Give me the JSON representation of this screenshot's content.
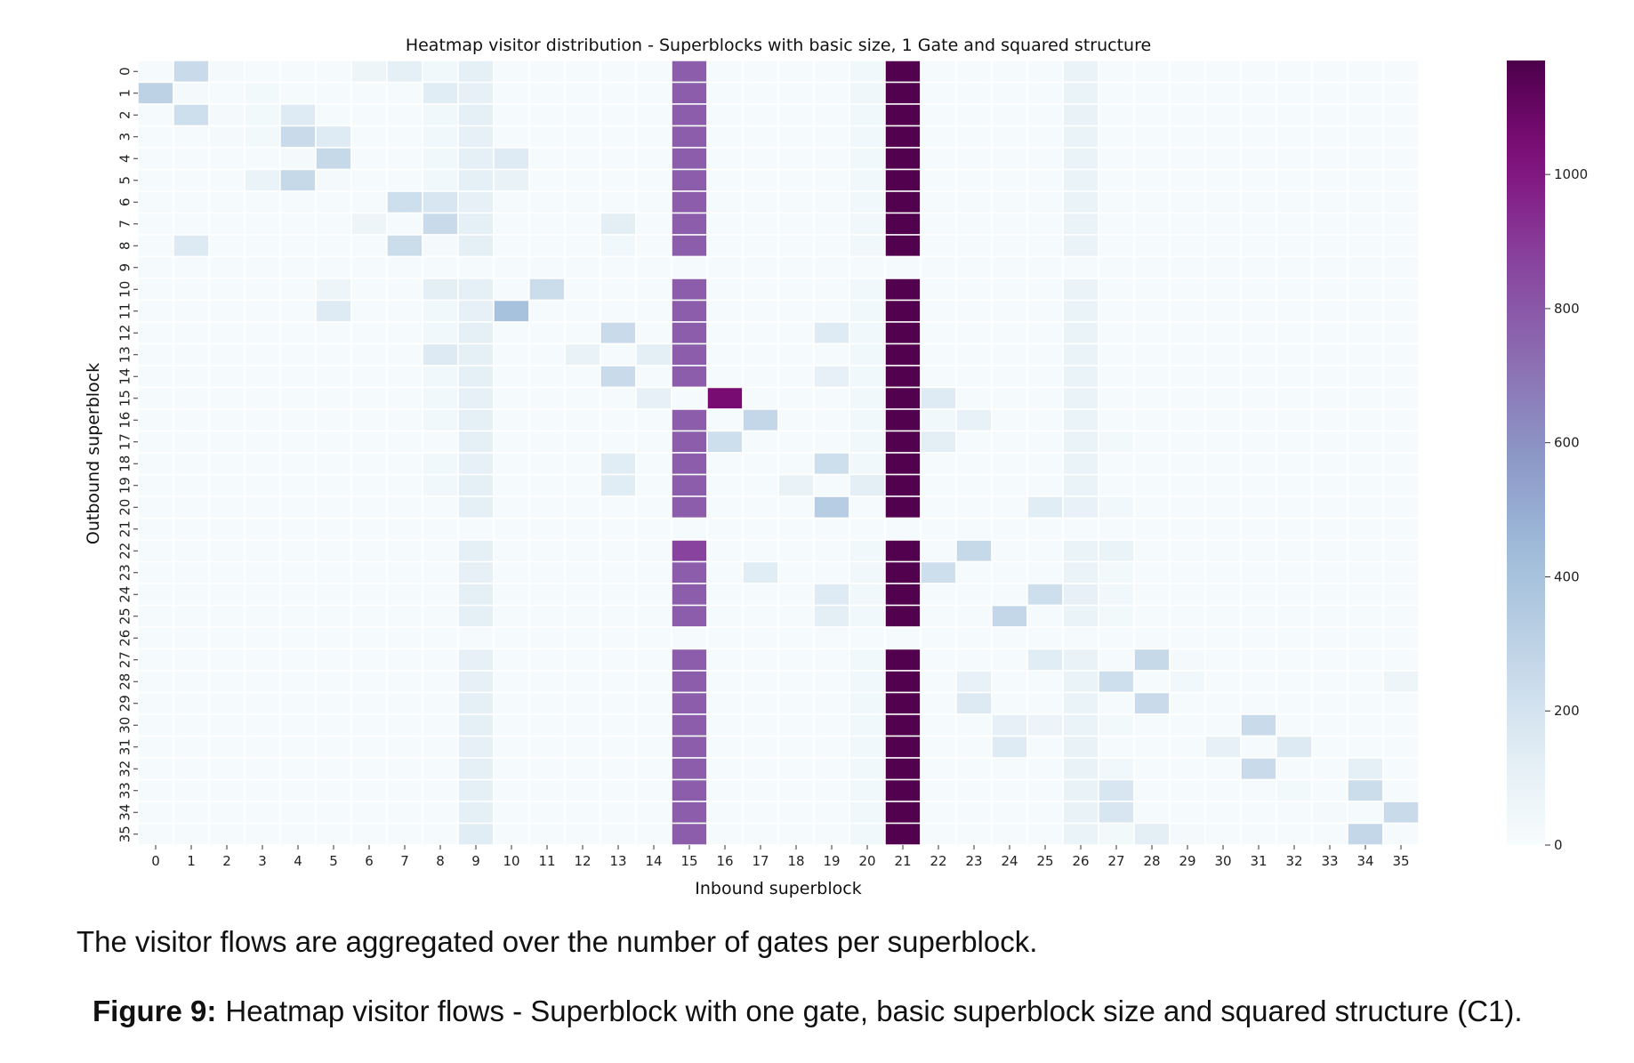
{
  "chart_data": {
    "type": "heatmap",
    "title": "Heatmap visitor distribution - Superblocks with basic size, 1 Gate and squared structure",
    "xlabel": "Inbound superblock",
    "ylabel": "Outbound superblock",
    "x_categories": [
      "0",
      "1",
      "2",
      "3",
      "4",
      "5",
      "6",
      "7",
      "8",
      "9",
      "10",
      "11",
      "12",
      "13",
      "14",
      "15",
      "16",
      "17",
      "18",
      "19",
      "20",
      "21",
      "22",
      "23",
      "24",
      "25",
      "26",
      "27",
      "28",
      "29",
      "30",
      "31",
      "32",
      "33",
      "34",
      "35"
    ],
    "y_categories": [
      "0",
      "1",
      "2",
      "3",
      "4",
      "5",
      "6",
      "7",
      "8",
      "9",
      "10",
      "11",
      "12",
      "13",
      "14",
      "15",
      "16",
      "17",
      "18",
      "19",
      "20",
      "21",
      "22",
      "23",
      "24",
      "25",
      "26",
      "27",
      "28",
      "29",
      "30",
      "31",
      "32",
      "33",
      "34",
      "35"
    ],
    "colormap": "BuPu",
    "colorbar": {
      "range": [
        0,
        1170
      ],
      "ticks": [
        0,
        200,
        400,
        600,
        800,
        1000
      ]
    },
    "linecolor": "#ffffff",
    "values": [
      [
        10,
        250,
        20,
        10,
        10,
        10,
        60,
        120,
        40,
        120,
        10,
        10,
        10,
        10,
        10,
        780,
        10,
        10,
        10,
        10,
        40,
        1160,
        10,
        10,
        10,
        10,
        80,
        10,
        10,
        10,
        10,
        10,
        10,
        10,
        10,
        10
      ],
      [
        300,
        20,
        10,
        30,
        10,
        10,
        10,
        10,
        140,
        110,
        10,
        10,
        10,
        10,
        10,
        780,
        10,
        10,
        10,
        10,
        50,
        1160,
        10,
        10,
        10,
        10,
        80,
        10,
        10,
        10,
        10,
        10,
        10,
        10,
        10,
        10
      ],
      [
        10,
        230,
        20,
        30,
        150,
        10,
        10,
        10,
        40,
        120,
        10,
        10,
        10,
        10,
        10,
        780,
        10,
        10,
        10,
        10,
        40,
        1160,
        10,
        10,
        10,
        10,
        90,
        10,
        10,
        10,
        10,
        10,
        10,
        10,
        10,
        10
      ],
      [
        10,
        10,
        20,
        30,
        250,
        150,
        10,
        10,
        40,
        110,
        10,
        10,
        10,
        10,
        10,
        780,
        10,
        10,
        10,
        10,
        40,
        1160,
        10,
        10,
        10,
        10,
        80,
        10,
        10,
        10,
        10,
        10,
        10,
        10,
        10,
        10
      ],
      [
        10,
        10,
        10,
        10,
        20,
        260,
        10,
        10,
        40,
        120,
        150,
        10,
        10,
        10,
        10,
        780,
        10,
        10,
        10,
        10,
        40,
        1160,
        10,
        10,
        10,
        10,
        80,
        10,
        10,
        10,
        10,
        10,
        10,
        10,
        10,
        10
      ],
      [
        10,
        10,
        10,
        80,
        260,
        20,
        10,
        10,
        40,
        120,
        90,
        10,
        10,
        10,
        10,
        780,
        10,
        10,
        10,
        10,
        40,
        1160,
        10,
        10,
        10,
        10,
        80,
        10,
        10,
        10,
        10,
        10,
        10,
        10,
        10,
        10
      ],
      [
        10,
        10,
        10,
        10,
        10,
        10,
        10,
        230,
        180,
        110,
        10,
        10,
        10,
        10,
        10,
        780,
        10,
        10,
        10,
        10,
        40,
        1160,
        10,
        10,
        10,
        10,
        80,
        10,
        10,
        10,
        10,
        10,
        10,
        10,
        10,
        10
      ],
      [
        10,
        10,
        10,
        10,
        10,
        10,
        60,
        10,
        250,
        120,
        10,
        10,
        10,
        130,
        10,
        780,
        10,
        10,
        10,
        10,
        40,
        1160,
        10,
        10,
        10,
        10,
        80,
        10,
        10,
        10,
        10,
        10,
        10,
        10,
        10,
        10
      ],
      [
        10,
        160,
        10,
        10,
        10,
        10,
        10,
        240,
        20,
        120,
        10,
        10,
        10,
        40,
        10,
        780,
        10,
        10,
        10,
        10,
        40,
        1160,
        10,
        10,
        10,
        10,
        80,
        10,
        10,
        10,
        10,
        10,
        10,
        10,
        10,
        10
      ],
      [
        10,
        10,
        10,
        10,
        10,
        10,
        10,
        10,
        10,
        10,
        10,
        10,
        10,
        10,
        10,
        10,
        10,
        10,
        10,
        10,
        10,
        10,
        10,
        10,
        10,
        10,
        10,
        10,
        10,
        10,
        10,
        10,
        10,
        10,
        10,
        10
      ],
      [
        10,
        10,
        10,
        10,
        10,
        60,
        10,
        10,
        130,
        120,
        10,
        240,
        10,
        10,
        10,
        780,
        10,
        10,
        10,
        10,
        40,
        1160,
        10,
        10,
        10,
        10,
        80,
        10,
        10,
        10,
        10,
        10,
        10,
        10,
        10,
        10
      ],
      [
        10,
        10,
        10,
        10,
        10,
        150,
        10,
        10,
        40,
        110,
        400,
        10,
        10,
        10,
        10,
        780,
        10,
        10,
        10,
        10,
        40,
        1160,
        10,
        10,
        10,
        10,
        80,
        10,
        10,
        10,
        10,
        10,
        10,
        10,
        10,
        10
      ],
      [
        10,
        10,
        10,
        10,
        10,
        10,
        10,
        10,
        40,
        120,
        10,
        10,
        10,
        250,
        10,
        780,
        10,
        10,
        10,
        150,
        40,
        1160,
        10,
        10,
        10,
        10,
        80,
        10,
        10,
        10,
        10,
        10,
        10,
        10,
        10,
        10
      ],
      [
        10,
        10,
        10,
        10,
        10,
        10,
        10,
        10,
        160,
        120,
        10,
        10,
        90,
        10,
        130,
        780,
        10,
        10,
        10,
        10,
        40,
        1160,
        10,
        10,
        10,
        10,
        80,
        10,
        10,
        10,
        10,
        10,
        10,
        10,
        10,
        10
      ],
      [
        10,
        10,
        10,
        10,
        10,
        10,
        10,
        10,
        40,
        120,
        10,
        10,
        10,
        250,
        10,
        780,
        10,
        10,
        10,
        110,
        40,
        1160,
        10,
        10,
        10,
        10,
        80,
        10,
        10,
        10,
        10,
        10,
        10,
        10,
        10,
        10
      ],
      [
        10,
        10,
        10,
        10,
        10,
        10,
        10,
        10,
        40,
        110,
        10,
        10,
        10,
        10,
        110,
        10,
        1050,
        10,
        10,
        10,
        40,
        1160,
        150,
        10,
        10,
        10,
        80,
        10,
        10,
        10,
        10,
        10,
        10,
        10,
        10,
        10
      ],
      [
        10,
        10,
        10,
        10,
        10,
        10,
        10,
        10,
        40,
        120,
        10,
        10,
        10,
        10,
        10,
        780,
        10,
        270,
        10,
        10,
        40,
        1160,
        40,
        100,
        10,
        10,
        80,
        10,
        10,
        10,
        10,
        10,
        10,
        10,
        10,
        10
      ],
      [
        10,
        10,
        10,
        10,
        10,
        10,
        10,
        10,
        10,
        120,
        10,
        10,
        10,
        10,
        10,
        780,
        230,
        10,
        10,
        10,
        40,
        1160,
        130,
        10,
        10,
        10,
        80,
        30,
        10,
        10,
        10,
        10,
        10,
        10,
        10,
        10
      ],
      [
        10,
        10,
        10,
        10,
        10,
        10,
        10,
        10,
        40,
        110,
        10,
        10,
        10,
        140,
        10,
        780,
        10,
        10,
        10,
        230,
        40,
        1160,
        10,
        10,
        10,
        10,
        80,
        10,
        10,
        10,
        10,
        10,
        10,
        10,
        10,
        10
      ],
      [
        10,
        10,
        10,
        10,
        10,
        10,
        10,
        10,
        40,
        120,
        10,
        10,
        10,
        140,
        10,
        780,
        10,
        10,
        90,
        10,
        130,
        1160,
        10,
        10,
        10,
        10,
        80,
        10,
        10,
        10,
        10,
        10,
        10,
        10,
        10,
        10
      ],
      [
        10,
        10,
        10,
        10,
        10,
        10,
        10,
        10,
        10,
        120,
        10,
        10,
        10,
        10,
        10,
        780,
        10,
        10,
        10,
        330,
        10,
        1160,
        10,
        10,
        10,
        140,
        100,
        40,
        10,
        10,
        10,
        10,
        10,
        10,
        10,
        10
      ],
      [
        10,
        10,
        10,
        10,
        10,
        10,
        10,
        10,
        10,
        10,
        10,
        10,
        10,
        10,
        10,
        10,
        10,
        10,
        10,
        10,
        10,
        10,
        10,
        10,
        10,
        10,
        10,
        10,
        10,
        10,
        10,
        10,
        10,
        10,
        10,
        10
      ],
      [
        10,
        10,
        10,
        10,
        10,
        10,
        10,
        10,
        10,
        120,
        10,
        10,
        10,
        10,
        10,
        870,
        10,
        10,
        10,
        10,
        40,
        1160,
        10,
        260,
        10,
        10,
        80,
        80,
        10,
        10,
        10,
        10,
        10,
        10,
        10,
        10
      ],
      [
        10,
        10,
        10,
        10,
        10,
        10,
        10,
        10,
        10,
        110,
        10,
        10,
        10,
        10,
        10,
        780,
        10,
        140,
        10,
        10,
        40,
        1160,
        230,
        10,
        10,
        10,
        80,
        30,
        10,
        10,
        10,
        10,
        10,
        10,
        10,
        10
      ],
      [
        10,
        10,
        10,
        10,
        10,
        10,
        10,
        10,
        10,
        120,
        10,
        10,
        10,
        10,
        10,
        780,
        10,
        10,
        10,
        150,
        40,
        1160,
        10,
        10,
        10,
        230,
        110,
        40,
        10,
        10,
        10,
        10,
        10,
        10,
        10,
        10
      ],
      [
        10,
        10,
        10,
        10,
        10,
        10,
        10,
        10,
        10,
        120,
        10,
        10,
        10,
        10,
        10,
        780,
        10,
        10,
        10,
        130,
        40,
        1160,
        10,
        10,
        270,
        10,
        80,
        30,
        10,
        10,
        10,
        10,
        10,
        10,
        10,
        10
      ],
      [
        10,
        10,
        10,
        10,
        10,
        10,
        10,
        10,
        10,
        10,
        10,
        10,
        10,
        10,
        10,
        10,
        10,
        10,
        10,
        10,
        10,
        10,
        10,
        10,
        10,
        10,
        10,
        10,
        10,
        10,
        10,
        10,
        10,
        10,
        10,
        10
      ],
      [
        10,
        10,
        10,
        10,
        10,
        10,
        10,
        10,
        10,
        110,
        10,
        10,
        10,
        10,
        10,
        780,
        10,
        10,
        10,
        10,
        40,
        1160,
        10,
        10,
        10,
        140,
        90,
        10,
        260,
        20,
        10,
        10,
        10,
        10,
        10,
        10
      ],
      [
        10,
        10,
        10,
        10,
        10,
        10,
        10,
        10,
        10,
        110,
        10,
        10,
        10,
        10,
        10,
        780,
        10,
        10,
        10,
        10,
        40,
        1160,
        10,
        100,
        10,
        10,
        80,
        230,
        10,
        40,
        10,
        10,
        10,
        10,
        10,
        60
      ],
      [
        10,
        10,
        10,
        10,
        10,
        10,
        10,
        10,
        10,
        120,
        10,
        10,
        10,
        10,
        10,
        780,
        10,
        10,
        10,
        10,
        40,
        1160,
        10,
        160,
        10,
        10,
        80,
        10,
        250,
        10,
        10,
        10,
        10,
        10,
        10,
        10
      ],
      [
        10,
        10,
        10,
        10,
        10,
        10,
        10,
        10,
        10,
        120,
        10,
        10,
        10,
        10,
        10,
        780,
        10,
        10,
        10,
        10,
        40,
        1160,
        10,
        10,
        110,
        70,
        80,
        30,
        10,
        10,
        10,
        250,
        10,
        10,
        10,
        10
      ],
      [
        10,
        10,
        10,
        10,
        10,
        10,
        10,
        10,
        10,
        110,
        10,
        10,
        10,
        10,
        10,
        780,
        10,
        10,
        10,
        10,
        40,
        1160,
        10,
        10,
        150,
        10,
        90,
        10,
        10,
        10,
        110,
        10,
        160,
        10,
        10,
        10
      ],
      [
        10,
        10,
        10,
        10,
        10,
        10,
        10,
        10,
        10,
        120,
        10,
        10,
        10,
        10,
        10,
        780,
        10,
        10,
        10,
        10,
        40,
        1160,
        10,
        10,
        10,
        10,
        90,
        40,
        10,
        10,
        10,
        250,
        10,
        10,
        120,
        10
      ],
      [
        10,
        10,
        10,
        10,
        10,
        10,
        10,
        10,
        10,
        120,
        10,
        10,
        10,
        10,
        10,
        780,
        10,
        10,
        10,
        10,
        40,
        1160,
        10,
        10,
        10,
        10,
        90,
        180,
        10,
        10,
        10,
        10,
        30,
        10,
        240,
        10
      ],
      [
        10,
        10,
        10,
        10,
        10,
        10,
        10,
        10,
        10,
        120,
        10,
        10,
        10,
        10,
        10,
        780,
        10,
        10,
        10,
        10,
        40,
        1160,
        10,
        10,
        10,
        10,
        90,
        180,
        10,
        10,
        10,
        10,
        10,
        20,
        10,
        250
      ],
      [
        10,
        10,
        10,
        10,
        10,
        10,
        10,
        10,
        10,
        140,
        10,
        10,
        10,
        10,
        10,
        780,
        10,
        10,
        10,
        10,
        40,
        1160,
        10,
        10,
        10,
        10,
        80,
        30,
        130,
        20,
        10,
        10,
        10,
        10,
        270,
        10
      ]
    ]
  },
  "note": "The visitor flows are aggregated over the number of gates per superblock.",
  "caption": {
    "label": "Figure 9:",
    "text": "Heatmap visitor flows - Superblock with one gate, basic superblock size and squared structure (C1)."
  }
}
